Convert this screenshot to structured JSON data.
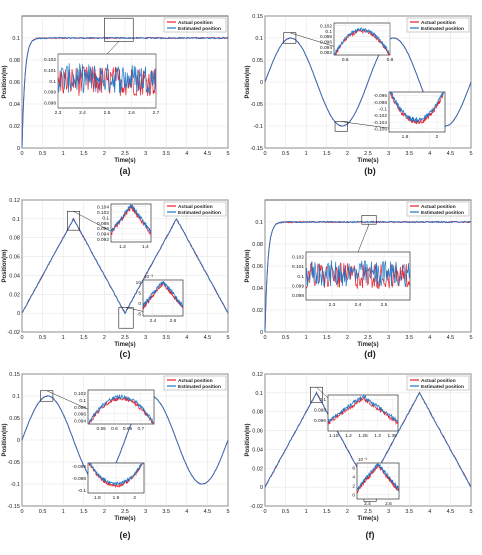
{
  "colors": {
    "actual": "#e8202a",
    "estimated": "#1f78c8",
    "axis": "#333333",
    "grid": "#d9d9d9"
  },
  "chart_data": [
    {
      "panel": "(a)",
      "type": "line",
      "xlabel": "Time(s)",
      "ylabel": "Position(m)",
      "xlim": [
        0,
        5
      ],
      "ylim": [
        0,
        0.12
      ],
      "xticks": [
        "0",
        "0.5",
        "1",
        "1.5",
        "2",
        "2.5",
        "3",
        "3.5",
        "4",
        "4.5",
        "5"
      ],
      "yticks": [
        "0",
        "0.02",
        "0.04",
        "0.06",
        "0.08",
        "0.1"
      ],
      "legend": [
        "Actual position",
        "Estimated position"
      ],
      "legend_position": "top-right",
      "signal": "step",
      "amplitude": 0.1,
      "inset": {
        "xlim": [
          2.3,
          2.7
        ],
        "ylim": [
          0.0975,
          0.1025
        ],
        "xticks": [
          "2.3",
          "2.4",
          "2.5",
          "2.6",
          "2.7"
        ],
        "yticks": [
          "0.102",
          "0.101",
          "0.1",
          "0.099",
          "0.098"
        ]
      }
    },
    {
      "panel": "(b)",
      "type": "line",
      "xlabel": "Time(s)",
      "ylabel": "Position(m)",
      "xlim": [
        0,
        5
      ],
      "ylim": [
        -0.15,
        0.15
      ],
      "xticks": [
        "0",
        "0.5",
        "1",
        "1.5",
        "2",
        "2.5",
        "3",
        "3.5",
        "4",
        "4.5",
        "5"
      ],
      "yticks": [
        "-0.15",
        "-0.1",
        "-0.05",
        "0",
        "0.05",
        "0.1",
        "0.15"
      ],
      "legend": [
        "Actual position",
        "Estimated position"
      ],
      "legend_position": "top-right",
      "signal": "sine",
      "amplitude": 0.1,
      "period": 2.5,
      "inset_top": {
        "xlim": [
          0.55,
          0.8
        ],
        "ylim": [
          0.091,
          0.103
        ],
        "xticks": [
          "0.6",
          "0.8"
        ],
        "yticks": [
          "0.102",
          "0.1",
          "0.098",
          "0.096",
          "0.094",
          "0.092"
        ]
      },
      "inset_bottom": {
        "xlim": [
          1.7,
          2.05
        ],
        "ylim": [
          -0.107,
          -0.095
        ],
        "xticks": [
          "1.8",
          "2"
        ],
        "yticks": [
          "-0.096",
          "-0.098",
          "-0.1",
          "-0.102",
          "-0.104",
          "-0.106"
        ]
      }
    },
    {
      "panel": "(c)",
      "type": "line",
      "xlabel": "Time(s)",
      "ylabel": "Position(m)",
      "xlim": [
        0,
        5
      ],
      "ylim": [
        -0.02,
        0.12
      ],
      "xticks": [
        "0",
        "0.5",
        "1",
        "1.5",
        "2",
        "2.5",
        "3",
        "3.5",
        "4",
        "4.5",
        "5"
      ],
      "yticks": [
        "-0.02",
        "0",
        "0.02",
        "0.04",
        "0.06",
        "0.08",
        "0.1",
        "0.12"
      ],
      "legend": [
        "Actual position",
        "Estimated position"
      ],
      "legend_position": "top-right",
      "signal": "triangle",
      "amplitude": 0.1,
      "period": 2.5,
      "inset_top": {
        "xlim": [
          1.1,
          1.45
        ],
        "ylim": [
          0.091,
          0.105
        ],
        "xticks": [
          "1.2",
          "1.4"
        ],
        "yticks": [
          "0.104",
          "0.102",
          "0.1",
          "0.098",
          "0.096",
          "0.094",
          "0.092"
        ]
      },
      "inset_bottom": {
        "xlim": [
          2.3,
          2.7
        ],
        "ylim": [
          -6,
          11
        ],
        "exponent": "10⁻³",
        "xticks": [
          "2.4",
          "2.6"
        ],
        "yticks": [
          "10",
          "5",
          "0",
          "-5"
        ]
      }
    },
    {
      "panel": "(d)",
      "type": "line",
      "xlabel": "Time(s)",
      "ylabel": "Position(m)",
      "xlim": [
        0,
        5
      ],
      "ylim": [
        0,
        0.12
      ],
      "xticks": [
        "0",
        "0.5",
        "1",
        "1.5",
        "2",
        "2.5",
        "3",
        "3.5",
        "4",
        "4.5",
        "5"
      ],
      "yticks": [
        "0",
        "0.02",
        "0.04",
        "0.06",
        "0.08",
        "0.1"
      ],
      "legend": [
        "Actual position",
        "Estimated position"
      ],
      "legend_position": "top-right",
      "signal": "step",
      "amplitude": 0.1,
      "inset": {
        "xlim": [
          2.2,
          2.6
        ],
        "ylim": [
          0.0975,
          0.1025
        ],
        "xticks": [
          "2.3",
          "2.4",
          "2.5"
        ],
        "yticks": [
          "0.102",
          "0.101",
          "0.1",
          "0.099",
          "0.098"
        ]
      }
    },
    {
      "panel": "(e)",
      "type": "line",
      "xlabel": "Time(s)",
      "ylabel": "Position(m)",
      "xlim": [
        0,
        5
      ],
      "ylim": [
        -0.15,
        0.15
      ],
      "xticks": [
        "0",
        "0.5",
        "1",
        "1.5",
        "2",
        "2.5",
        "3",
        "3.5",
        "4",
        "4.5",
        "5"
      ],
      "yticks": [
        "-0.15",
        "-0.1",
        "-0.05",
        "0",
        "0.05",
        "0.1",
        "0.15"
      ],
      "legend": [
        "Actual position",
        "Estimated position"
      ],
      "legend_position": "top-right",
      "signal": "sine",
      "amplitude": 0.1,
      "period": 2.5,
      "inset_top": {
        "xlim": [
          0.5,
          0.75
        ],
        "ylim": [
          0.093,
          0.103
        ],
        "xticks": [
          "0.55",
          "0.6",
          "0.65",
          "0.7"
        ],
        "yticks": [
          "0.102",
          "0.1",
          "0.098",
          "0.096",
          "0.094"
        ]
      },
      "inset_bottom": {
        "xlim": [
          1.75,
          2.05
        ],
        "ylim": [
          -0.1005,
          -0.0955
        ],
        "xticks": [
          "1.8",
          "1.9",
          "2"
        ],
        "yticks": [
          "-0.096",
          "-0.098",
          "-0.1"
        ]
      }
    },
    {
      "panel": "(f)",
      "type": "line",
      "xlabel": "Time(s)",
      "ylabel": "Position(m)",
      "xlim": [
        0,
        5
      ],
      "ylim": [
        -0.02,
        0.12
      ],
      "xticks": [
        "0",
        "0.5",
        "1",
        "1.5",
        "2",
        "2.5",
        "3",
        "3.5",
        "4",
        "4.5",
        "5"
      ],
      "yticks": [
        "-0.02",
        "0",
        "0.02",
        "0.04",
        "0.06",
        "0.08",
        "0.1",
        "0.12"
      ],
      "legend": [
        "Actual position",
        "Estimated position"
      ],
      "legend_position": "top-right",
      "signal": "triangle",
      "amplitude": 0.1,
      "period": 2.5,
      "inset_top": {
        "xlim": [
          1.13,
          1.37
        ],
        "ylim": [
          0.094,
          0.1008
        ],
        "xticks": [
          "1.15",
          "1.2",
          "1.25",
          "1.3",
          "1.35"
        ],
        "yticks": [
          "0.1",
          "0.098",
          "0.096"
        ]
      },
      "inset_bottom": {
        "xlim": [
          2.3,
          2.7
        ],
        "ylim": [
          -1,
          7
        ],
        "exponent": "10⁻³",
        "xticks": [
          "2.4",
          "2.6"
        ],
        "yticks": [
          "6",
          "4",
          "2",
          "0"
        ]
      }
    }
  ]
}
